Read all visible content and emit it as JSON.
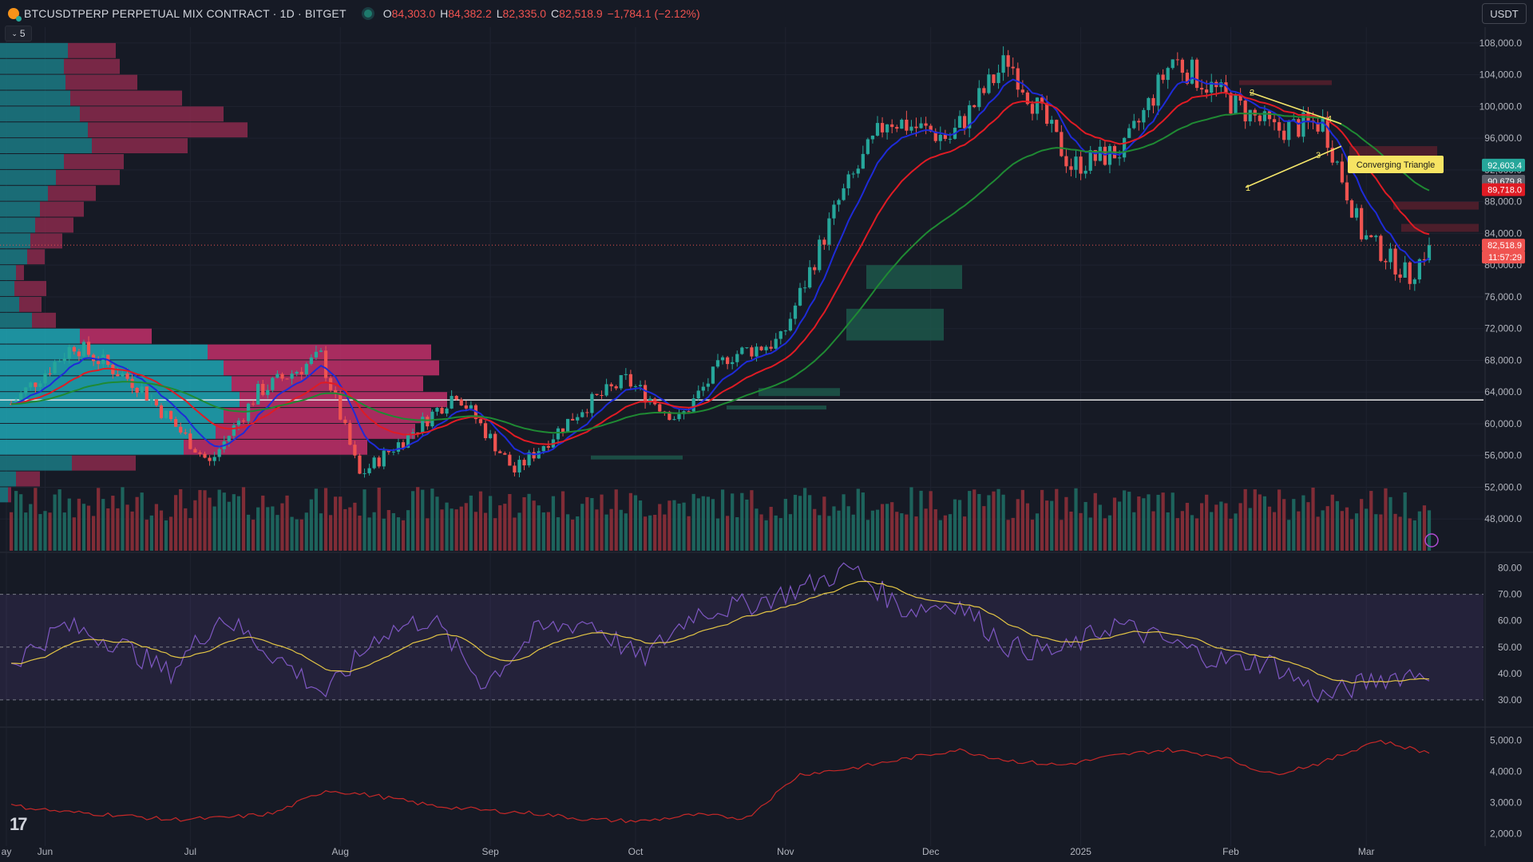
{
  "header": {
    "symbol_line": "BTCUSDTPERP PERPETUAL MIX CONTRACT · 1D · BITGET",
    "open_label": "O",
    "open_value": "84,303.0",
    "high_label": "H",
    "high_value": "84,382.2",
    "low_label": "L",
    "low_value": "82,335.0",
    "close_label": "C",
    "close_value": "82,518.9",
    "change": "−1,784.1 (−2.12%)",
    "indicator_toggle": "5"
  },
  "currency_button": "USDT",
  "colors": {
    "up": "#26a69a",
    "down": "#ef5350",
    "ema_fast": "#1e2bd8",
    "ema_mid": "#e01b24",
    "ema_slow": "#1f8a33",
    "rsi": "#7e57c2",
    "rsi_ma": "#e3c545",
    "bg": "#161a25"
  },
  "chart_data": [
    {
      "type": "candlestick",
      "panel": "price",
      "ylim": [
        44000,
        110000
      ],
      "y_ticks": [
        "108,000.0",
        "104,000.0",
        "100,000.0",
        "96,000.0",
        "92,000.0",
        "88,000.0",
        "84,000.0",
        "80,000.0",
        "76,000.0",
        "72,000.0",
        "68,000.0",
        "64,000.0",
        "60,000.0",
        "56,000.0",
        "52,000.0",
        "48,000.0"
      ],
      "x_ticks": [
        "ay",
        "Jun",
        "Jul",
        "Aug",
        "Sep",
        "Oct",
        "Nov",
        "Dec",
        "2025",
        "Feb",
        "Mar"
      ],
      "price_tags": [
        {
          "value": "92,603.4",
          "color": "#26a69a"
        },
        {
          "value": "90,679.8",
          "color": "#5d606b"
        },
        {
          "value": "89,718.0",
          "color": "#e01b24"
        },
        {
          "value": "82,518.9",
          "color": "#ef5350"
        },
        {
          "value": "11:57:29",
          "color": "#ef5350"
        }
      ],
      "horizontal_line": 63000,
      "pattern_label": "Converging Triangle",
      "pattern_points": [
        "1",
        "2",
        "3",
        "4"
      ],
      "close_series": [
        {
          "x": "2024-05-25",
          "y": 62500
        },
        {
          "x": "2024-06-07",
          "y": 70000
        },
        {
          "x": "2024-06-20",
          "y": 65000
        },
        {
          "x": "2024-07-05",
          "y": 55000
        },
        {
          "x": "2024-07-15",
          "y": 64000
        },
        {
          "x": "2024-07-28",
          "y": 68500
        },
        {
          "x": "2024-08-05",
          "y": 53500
        },
        {
          "x": "2024-08-15",
          "y": 58500
        },
        {
          "x": "2024-08-25",
          "y": 64000
        },
        {
          "x": "2024-09-06",
          "y": 54000
        },
        {
          "x": "2024-09-20",
          "y": 62000
        },
        {
          "x": "2024-09-29",
          "y": 65500
        },
        {
          "x": "2024-10-10",
          "y": 60500
        },
        {
          "x": "2024-10-20",
          "y": 68500
        },
        {
          "x": "2024-10-31",
          "y": 70500
        },
        {
          "x": "2024-11-12",
          "y": 88000
        },
        {
          "x": "2024-11-22",
          "y": 98500
        },
        {
          "x": "2024-12-05",
          "y": 96000
        },
        {
          "x": "2024-12-17",
          "y": 106000
        },
        {
          "x": "2024-12-30",
          "y": 92500
        },
        {
          "x": "2025-01-10",
          "y": 94500
        },
        {
          "x": "2025-01-20",
          "y": 106000
        },
        {
          "x": "2025-01-31",
          "y": 101000
        },
        {
          "x": "2025-02-10",
          "y": 97000
        },
        {
          "x": "2025-02-20",
          "y": 98000
        },
        {
          "x": "2025-02-28",
          "y": 84000
        },
        {
          "x": "2025-03-10",
          "y": 78500
        },
        {
          "x": "2025-03-14",
          "y": 82518.9
        }
      ]
    },
    {
      "type": "line",
      "panel": "rsi",
      "ylim": [
        20,
        85
      ],
      "y_ticks": [
        "80.00",
        "70.00",
        "60.00",
        "50.00",
        "40.00",
        "30.00"
      ],
      "band": [
        30,
        70
      ],
      "series": [
        {
          "values": [
            44,
            58,
            52,
            40,
            62,
            47,
            32,
            55,
            61,
            36,
            56,
            60,
            45,
            63,
            66,
            72,
            80,
            64,
            67,
            50,
            48,
            59,
            52,
            45,
            44,
            31,
            38,
            41
          ]
        }
      ]
    },
    {
      "type": "line",
      "panel": "oscillator",
      "ylim": [
        1600,
        5400
      ],
      "y_ticks": [
        "5,000.0",
        "4,000.0",
        "3,000.0",
        "2,000.0"
      ],
      "series": [
        {
          "values": [
            2900,
            2700,
            2600,
            2450,
            2500,
            2650,
            3400,
            3200,
            2900,
            2750,
            2650,
            2450,
            2400,
            2600,
            2500,
            3900,
            4100,
            4400,
            4700,
            4350,
            4200,
            4500,
            4700,
            4500,
            3900,
            4300,
            5000,
            4600
          ]
        }
      ]
    }
  ]
}
